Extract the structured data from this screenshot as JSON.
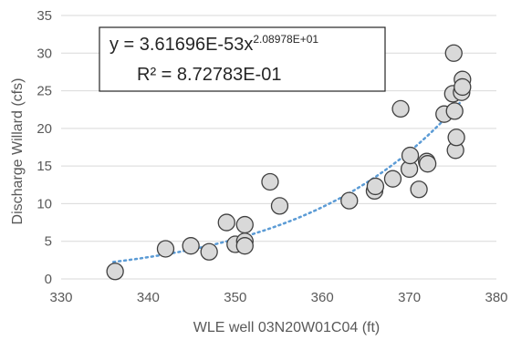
{
  "chart_data": {
    "type": "scatter",
    "title": "",
    "xlabel": "WLE well 03N20W01C04 (ft)",
    "ylabel": "Discharge Willard (cfs)",
    "xlim": [
      330,
      380
    ],
    "ylim": [
      0,
      35
    ],
    "xticks": [
      330,
      340,
      350,
      360,
      370,
      380
    ],
    "yticks": [
      0,
      5,
      10,
      15,
      20,
      25,
      30,
      35
    ],
    "grid": "horizontal",
    "points": {
      "x": [
        336.2,
        342.0,
        344.9,
        347.0,
        349.0,
        350.0,
        351.1,
        351.1,
        351.1,
        354.0,
        355.1,
        363.1,
        366.0,
        366.1,
        368.1,
        369.0,
        370.0,
        370.1,
        371.1,
        372.0,
        372.1,
        374.0,
        375.0,
        375.1,
        375.2,
        375.3,
        375.4,
        376.0,
        376.1,
        376.1
      ],
      "y": [
        1.0,
        4.0,
        4.4,
        3.6,
        7.5,
        4.6,
        7.2,
        5.0,
        4.4,
        12.9,
        9.7,
        10.4,
        11.7,
        12.3,
        13.3,
        22.6,
        14.6,
        16.4,
        11.9,
        15.6,
        15.3,
        21.9,
        24.6,
        30.0,
        22.3,
        17.1,
        18.8,
        24.8,
        26.5,
        25.5
      ]
    },
    "trendline": {
      "type": "power",
      "coefficient": 3.61696e-53,
      "exponent": 20.8978,
      "x_range": [
        336,
        376
      ]
    },
    "annotation": {
      "equation_lead": "y = 3.61696E-53x",
      "equation_exp": "2.08978E+01",
      "r_squared": "R² = 8.72783E-01"
    },
    "colors": {
      "marker_fill": "#d9d9d9",
      "marker_stroke": "#404040",
      "trendline": "#5b9bd5",
      "grid": "#d9d9d9",
      "text": "#595959"
    }
  }
}
